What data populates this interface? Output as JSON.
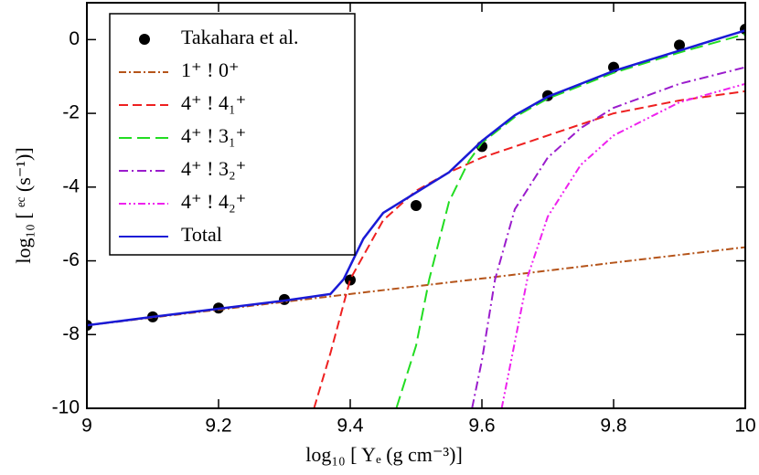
{
  "chart_data": {
    "type": "line",
    "xlabel": "log₁₀ [  Yₑ (g cm⁻³)]",
    "ylabel": "log₁₀ [  ᵉᶜ (s⁻¹)]",
    "xlim": [
      9,
      10
    ],
    "ylim": [
      -10,
      1
    ],
    "xticks": [
      9,
      9.2,
      9.4,
      9.6,
      9.8,
      10
    ],
    "yticks": [
      -10,
      -8,
      -6,
      -4,
      -2,
      0
    ],
    "legend": "upper left",
    "series": [
      {
        "name": "Takahara et al.",
        "style": "scatter",
        "color": "#000000",
        "x": [
          9,
          9.1,
          9.2,
          9.3,
          9.4,
          9.5,
          9.6,
          9.7,
          9.8,
          9.9,
          10
        ],
        "values": [
          -7.75,
          -7.52,
          -7.28,
          -7.05,
          -6.52,
          -4.5,
          -2.9,
          -1.52,
          -0.75,
          -0.15,
          0.28
        ]
      },
      {
        "name": "1⁺ !  0⁺",
        "style": "line",
        "color": "#b5541a",
        "dash": "8 3 2 3",
        "x": [
          9,
          9.4,
          9.6,
          9.8,
          10
        ],
        "values": [
          -7.75,
          -6.9,
          -6.48,
          -6.05,
          -5.63
        ]
      },
      {
        "name": "4⁺ !  4₁⁺",
        "style": "line",
        "color": "#ee2020",
        "dash": "10 5",
        "x": [
          9.345,
          9.37,
          9.4,
          9.45,
          9.5,
          9.55,
          9.6,
          9.7,
          9.8,
          9.9,
          10
        ],
        "values": [
          -10,
          -8.5,
          -6.5,
          -4.9,
          -4.1,
          -3.6,
          -3.2,
          -2.6,
          -2.0,
          -1.65,
          -1.4
        ]
      },
      {
        "name": "4⁺ !  3₁⁺",
        "style": "line",
        "color": "#22dd22",
        "dash": "14 6",
        "x": [
          9.47,
          9.5,
          9.52,
          9.55,
          9.58,
          9.6,
          9.65,
          9.7,
          9.8,
          9.9,
          10
        ],
        "values": [
          -10,
          -8.3,
          -6.5,
          -4.4,
          -3.3,
          -2.8,
          -2.1,
          -1.6,
          -0.9,
          -0.35,
          0.15
        ]
      },
      {
        "name": "4⁺ !  3₂⁺",
        "style": "line",
        "color": "#9a1ccc",
        "dash": "10 4 2 4",
        "x": [
          9.585,
          9.6,
          9.62,
          9.65,
          9.7,
          9.75,
          9.8,
          9.9,
          10
        ],
        "values": [
          -10,
          -8.7,
          -6.5,
          -4.6,
          -3.2,
          -2.4,
          -1.85,
          -1.2,
          -0.75
        ]
      },
      {
        "name": "4⁺ !  4₂⁺",
        "style": "line",
        "color": "#ee22ee",
        "dash": "8 3 2 3 2 3",
        "x": [
          9.63,
          9.65,
          9.67,
          9.7,
          9.75,
          9.8,
          9.9,
          10
        ],
        "values": [
          -10,
          -8.2,
          -6.4,
          -4.8,
          -3.4,
          -2.6,
          -1.7,
          -1.2
        ]
      },
      {
        "name": "Total",
        "style": "line",
        "color": "#1a1ad6",
        "dash": "none",
        "x": [
          9,
          9.1,
          9.2,
          9.3,
          9.37,
          9.39,
          9.42,
          9.45,
          9.5,
          9.55,
          9.6,
          9.65,
          9.7,
          9.8,
          9.9,
          10
        ],
        "values": [
          -7.75,
          -7.52,
          -7.3,
          -7.08,
          -6.9,
          -6.5,
          -5.4,
          -4.7,
          -4.15,
          -3.6,
          -2.75,
          -2.05,
          -1.55,
          -0.85,
          -0.3,
          0.25
        ]
      }
    ]
  }
}
